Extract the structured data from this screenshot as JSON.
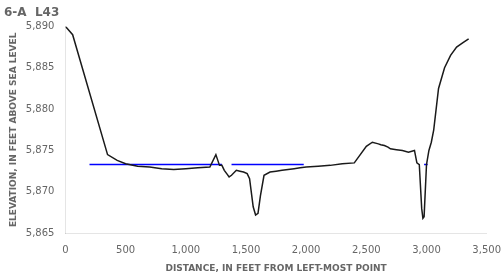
{
  "chart_data": {
    "type": "line",
    "title": "6-A  L43",
    "x_label": "DISTANCE, IN FEET FROM LEFT-MOST POINT",
    "y_label": "ELEVATION, IN FEET ABOVE SEA LEVEL",
    "xlim": [
      0,
      3500
    ],
    "ylim": [
      5865,
      5890
    ],
    "xticks": [
      0,
      500,
      {
        "value": 1000,
        "label": "1,000"
      },
      {
        "value": 1500,
        "label": "1,500"
      },
      {
        "value": 2000,
        "label": "2,000"
      },
      {
        "value": 2500,
        "label": "2,500"
      },
      {
        "value": 3000,
        "label": "3,000"
      },
      {
        "value": 3500,
        "label": "3,500"
      }
    ],
    "yticks": [
      {
        "value": 5865,
        "label": "5,865"
      },
      {
        "value": 5870,
        "label": "5,870"
      },
      {
        "value": 5875,
        "label": "5,875"
      },
      {
        "value": 5880,
        "label": "5,880"
      },
      {
        "value": 5885,
        "label": "5,885"
      },
      {
        "value": 5890,
        "label": "5,890"
      }
    ],
    "grid": false,
    "series": [
      {
        "color": "#1a1a1a",
        "x": [
          0,
          60,
          350,
          430,
          500,
          600,
          700,
          800,
          900,
          1000,
          1100,
          1200,
          1250,
          1280,
          1300,
          1320,
          1340,
          1360,
          1380,
          1420,
          1450,
          1480,
          1510,
          1530,
          1560,
          1580,
          1600,
          1620,
          1650,
          1700,
          1750,
          1800,
          1850,
          1900,
          1950,
          2000,
          2100,
          2200,
          2300,
          2400,
          2500,
          2550,
          2600,
          2620,
          2650,
          2680,
          2700,
          2750,
          2800,
          2850,
          2900,
          2920,
          2940,
          2960,
          2970,
          2980,
          3000,
          3020,
          3040,
          3060,
          3100,
          3150,
          3200,
          3250,
          3300,
          3350
        ],
        "values": [
          5890,
          5889,
          5874.5,
          5873.8,
          5873.4,
          5873.1,
          5873.0,
          5872.8,
          5872.7,
          5872.8,
          5872.9,
          5873.0,
          5874.5,
          5873.2,
          5873.2,
          5872.6,
          5872.2,
          5871.8,
          5872.0,
          5872.6,
          5872.5,
          5872.4,
          5872.2,
          5871.6,
          5868.2,
          5867.2,
          5867.4,
          5869.5,
          5872.0,
          5872.4,
          5872.5,
          5872.6,
          5872.7,
          5872.8,
          5872.9,
          5873.0,
          5873.1,
          5873.2,
          5873.4,
          5873.5,
          5875.5,
          5876.0,
          5875.8,
          5875.7,
          5875.6,
          5875.4,
          5875.2,
          5875.1,
          5875.0,
          5874.8,
          5875.0,
          5873.5,
          5873.3,
          5868.0,
          5866.8,
          5867.0,
          5873.3,
          5875.0,
          5876.0,
          5877.5,
          5882.5,
          5885.0,
          5886.5,
          5887.5,
          5888.0,
          5888.5
        ]
      },
      {
        "color": "#0000ff",
        "x": [
          200,
          1300
        ],
        "values": [
          5873.3,
          5873.3
        ]
      },
      {
        "color": "#0000ff",
        "x": [
          1380,
          1980
        ],
        "values": [
          5873.3,
          5873.3
        ]
      },
      {
        "color": "#0000ff",
        "x": [
          2980,
          3010
        ],
        "values": [
          5873.3,
          5873.3
        ]
      }
    ]
  }
}
